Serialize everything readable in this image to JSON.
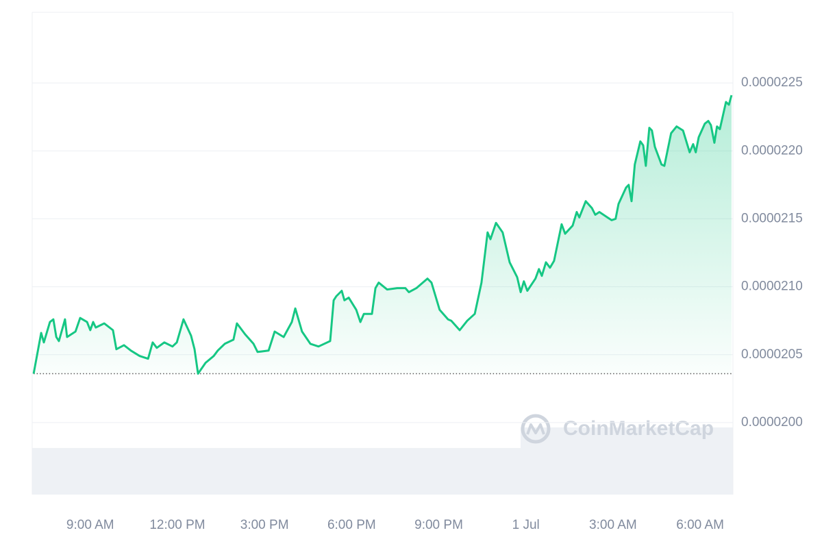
{
  "chart_data": {
    "type": "line",
    "watermark": "CoinMarketCap",
    "color": "#16c784",
    "grid": true,
    "xlim": [
      7,
      31.13
    ],
    "xticks": [
      {
        "value": 9,
        "label": "9:00 AM"
      },
      {
        "value": 12,
        "label": "12:00 PM"
      },
      {
        "value": 15,
        "label": "3:00 PM"
      },
      {
        "value": 18,
        "label": "6:00 PM"
      },
      {
        "value": 21,
        "label": "9:00 PM"
      },
      {
        "value": 24,
        "label": "1 Jul"
      },
      {
        "value": 27,
        "label": "3:00 AM"
      },
      {
        "value": 30,
        "label": "6:00 AM"
      }
    ],
    "ylim": [
      1.947e-05,
      2.302e-05
    ],
    "yticks": [
      {
        "value": 2e-05,
        "label": "0.0000200"
      },
      2.05e-05,
      {
        "value": 2.1e-05,
        "label": "0.0000210"
      },
      2.15e-05,
      {
        "value": 2.2e-05,
        "label": "0.0000220"
      },
      2.25e-05
    ],
    "x": [
      7.05,
      7.31,
      7.4,
      7.61,
      7.73,
      7.83,
      7.92,
      8.13,
      8.2,
      8.49,
      8.65,
      8.89,
      9.0,
      9.1,
      9.19,
      9.48,
      9.78,
      9.9,
      10.16,
      10.4,
      10.7,
      10.99,
      11.15,
      11.29,
      11.55,
      11.83,
      11.98,
      12.21,
      12.47,
      12.59,
      12.71,
      12.97,
      13.25,
      13.39,
      13.63,
      13.93,
      14.05,
      14.33,
      14.62,
      14.76,
      15.14,
      15.35,
      15.66,
      15.94,
      16.06,
      16.29,
      16.58,
      16.86,
      17.26,
      17.38,
      17.47,
      17.66,
      17.75,
      17.9,
      18.16,
      18.3,
      18.42,
      18.7,
      18.82,
      18.93,
      19.22,
      19.57,
      19.85,
      19.97,
      20.23,
      20.61,
      20.75,
      21.03,
      21.32,
      21.43,
      21.72,
      21.98,
      22.24,
      22.47,
      22.68,
      22.78,
      22.97,
      23.2,
      23.44,
      23.7,
      23.82,
      23.93,
      24.05,
      24.33,
      24.45,
      24.55,
      24.69,
      24.83,
      24.97,
      25.23,
      25.35,
      25.61,
      25.75,
      25.84,
      26.06,
      26.27,
      26.39,
      26.53,
      26.95,
      27.09,
      27.19,
      27.45,
      27.54,
      27.64,
      27.75,
      27.94,
      28.04,
      28.13,
      28.25,
      28.34,
      28.44,
      28.67,
      28.77,
      29.0,
      29.19,
      29.41,
      29.64,
      29.76,
      29.85,
      29.95,
      30.16,
      30.28,
      30.37,
      30.49,
      30.58,
      30.68,
      30.89,
      30.99,
      31.08
    ],
    "values": [
      2.036e-05,
      2.066e-05,
      2.059e-05,
      2.074e-05,
      2.076e-05,
      2.063e-05,
      2.06e-05,
      2.076e-05,
      2.063e-05,
      2.067e-05,
      2.077e-05,
      2.074e-05,
      2.068e-05,
      2.074e-05,
      2.07e-05,
      2.073e-05,
      2.068e-05,
      2.054e-05,
      2.057e-05,
      2.053e-05,
      2.049e-05,
      2.047e-05,
      2.059e-05,
      2.055e-05,
      2.059e-05,
      2.056e-05,
      2.059e-05,
      2.076e-05,
      2.064e-05,
      2.054e-05,
      2.036e-05,
      2.044e-05,
      2.049e-05,
      2.053e-05,
      2.058e-05,
      2.061e-05,
      2.073e-05,
      2.065e-05,
      2.058e-05,
      2.052e-05,
      2.053e-05,
      2.067e-05,
      2.063e-05,
      2.074e-05,
      2.084e-05,
      2.067e-05,
      2.058e-05,
      2.056e-05,
      2.06e-05,
      2.09e-05,
      2.093e-05,
      2.097e-05,
      2.09e-05,
      2.092e-05,
      2.083e-05,
      2.074e-05,
      2.08e-05,
      2.08e-05,
      2.099e-05,
      2.103e-05,
      2.098e-05,
      2.099e-05,
      2.099e-05,
      2.096e-05,
      2.099e-05,
      2.106e-05,
      2.103e-05,
      2.083e-05,
      2.076e-05,
      2.075e-05,
      2.068e-05,
      2.075e-05,
      2.08e-05,
      2.103e-05,
      2.14e-05,
      2.135e-05,
      2.147e-05,
      2.14e-05,
      2.118e-05,
      2.107e-05,
      2.096e-05,
      2.104e-05,
      2.097e-05,
      2.106e-05,
      2.113e-05,
      2.108e-05,
      2.118e-05,
      2.114e-05,
      2.119e-05,
      2.146e-05,
      2.139e-05,
      2.145e-05,
      2.155e-05,
      2.151e-05,
      2.163e-05,
      2.158e-05,
      2.153e-05,
      2.155e-05,
      2.149e-05,
      2.15e-05,
      2.161e-05,
      2.173e-05,
      2.175e-05,
      2.163e-05,
      2.19e-05,
      2.207e-05,
      2.204e-05,
      2.189e-05,
      2.217e-05,
      2.215e-05,
      2.203e-05,
      2.19e-05,
      2.189e-05,
      2.213e-05,
      2.218e-05,
      2.215e-05,
      2.199e-05,
      2.205e-05,
      2.199e-05,
      2.21e-05,
      2.22e-05,
      2.222e-05,
      2.219e-05,
      2.206e-05,
      2.218e-05,
      2.216e-05,
      2.236e-05,
      2.234e-05,
      2.241e-05
    ]
  }
}
